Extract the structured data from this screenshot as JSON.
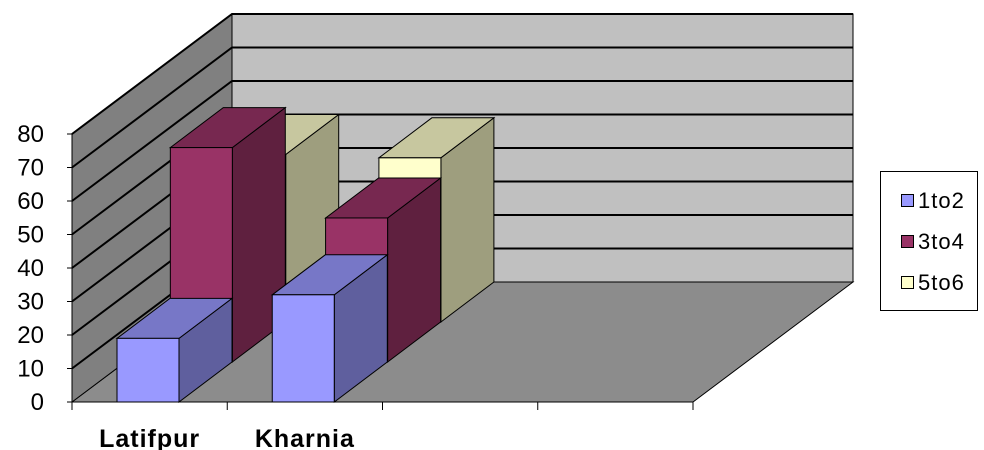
{
  "chart_data": {
    "type": "bar",
    "categories": [
      "Latifpur",
      "Kharnia",
      "",
      ""
    ],
    "series": [
      {
        "name": "1to2",
        "values": [
          19,
          32,
          null,
          null
        ],
        "color": "#9999ff"
      },
      {
        "name": "3to4",
        "values": [
          64,
          43,
          null,
          null
        ],
        "color": "#993366"
      },
      {
        "name": "5to6",
        "values": [
          50,
          49,
          null,
          null
        ],
        "color": "#ffffcc"
      }
    ],
    "yticks": [
      0,
      10,
      20,
      30,
      40,
      50,
      60,
      70,
      80
    ],
    "ylim": [
      0,
      80
    ],
    "grid": true,
    "legend_position": "right",
    "colors": {
      "back_wall": "#c0c0c0",
      "side_wall": "#808080",
      "floor": "#8c8c8c"
    }
  }
}
